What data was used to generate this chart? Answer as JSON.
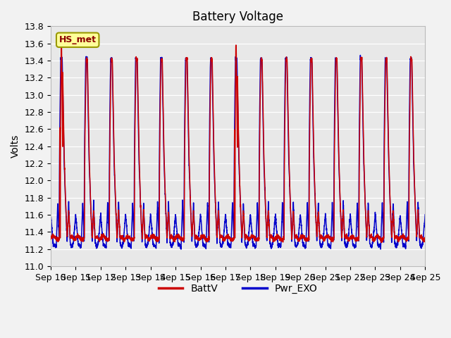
{
  "title": "Battery Voltage",
  "ylabel": "Volts",
  "ylim": [
    11.0,
    13.8
  ],
  "yticks": [
    11.0,
    11.2,
    11.4,
    11.6,
    11.8,
    12.0,
    12.2,
    12.4,
    12.6,
    12.8,
    13.0,
    13.2,
    13.4,
    13.6,
    13.8
  ],
  "xlabels": [
    "Sep 10",
    "Sep 11",
    "Sep 12",
    "Sep 13",
    "Sep 14",
    "Sep 15",
    "Sep 16",
    "Sep 17",
    "Sep 18",
    "Sep 19",
    "Sep 20",
    "Sep 21",
    "Sep 22",
    "Sep 23",
    "Sep 24",
    "Sep 25"
  ],
  "line_red_color": "#cc0000",
  "line_blue_color": "#0000cc",
  "plot_bg_color": "#e8e8e8",
  "fig_bg_color": "#f2f2f2",
  "annotation_text": "HS_met",
  "annotation_fg": "#8b0000",
  "annotation_bg": "#ffff99",
  "annotation_border": "#999900",
  "legend_labels": [
    "BattV",
    "Pwr_EXO"
  ],
  "title_fontsize": 12,
  "axis_label_fontsize": 10,
  "tick_fontsize": 9,
  "legend_fontsize": 10,
  "line_width": 1.1,
  "n_days": 15,
  "samples_per_day": 288
}
